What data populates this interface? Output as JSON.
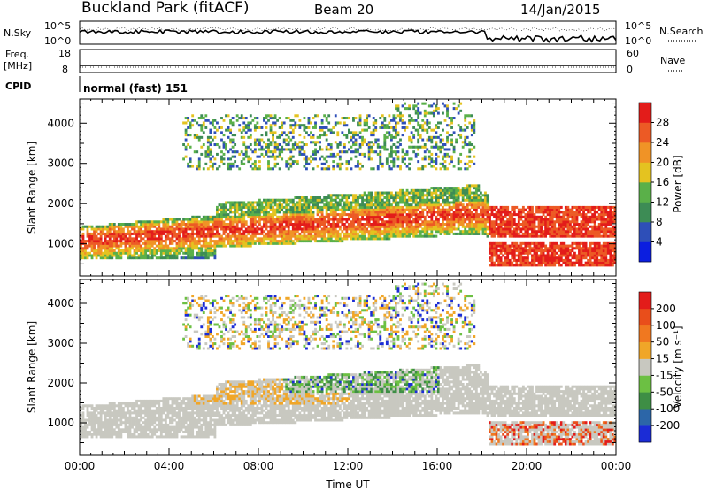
{
  "header": {
    "station": "Buckland Park (fitACF)",
    "beam": "Beam 20",
    "date": "14/Jan/2015"
  },
  "top_panels": {
    "nsky_label": "N.Sky",
    "nsky_ticks": [
      "10^5",
      "10^0"
    ],
    "nsearch_label": "N.Search",
    "nsearch_ticks": [
      "10^5",
      "10^0"
    ],
    "freq_label_1": "Freq.",
    "freq_label_2": "[MHz]",
    "freq_ticks": [
      "18",
      "8"
    ],
    "nave_label": "Nave",
    "nave_ticks": [
      "60",
      "0"
    ],
    "cpid_label": "CPID",
    "cpid_value": "normal (fast) 151"
  },
  "chart_data": [
    {
      "type": "heatmap",
      "title": "",
      "xlabel": "",
      "ylabel": "Slant Range [km]",
      "x_range_hours": [
        0,
        24
      ],
      "ylim": [
        200,
        4600
      ],
      "y_ticks": [
        "1000",
        "2000",
        "3000",
        "4000"
      ],
      "colorbar": {
        "label": "Power [dB]",
        "ticks": [
          "4",
          "8",
          "12",
          "16",
          "20",
          "24",
          "28"
        ],
        "colors": [
          "#0b1ee0",
          "#2e4fb8",
          "#3d8c55",
          "#5ab049",
          "#e4c320",
          "#f09326",
          "#ec5a25",
          "#e31c1a"
        ]
      }
    },
    {
      "type": "heatmap",
      "title": "",
      "xlabel": "Time UT",
      "ylabel": "Slant Range [km]",
      "x_range_hours": [
        0,
        24
      ],
      "x_ticks": [
        "00:00",
        "04:00",
        "08:00",
        "12:00",
        "16:00",
        "20:00",
        "00:00"
      ],
      "ylim": [
        200,
        4600
      ],
      "y_ticks": [
        "1000",
        "2000",
        "3000",
        "4000"
      ],
      "colorbar": {
        "label": "Velocity [m s⁻¹]",
        "ticks": [
          "200",
          "100",
          "50",
          "15",
          "-15",
          "-50",
          "-100",
          "-200"
        ],
        "colors": [
          "#1b2cd6",
          "#2c66a8",
          "#3e8e45",
          "#6cc043",
          "#c8c8c0",
          "#f0a628",
          "#f07820",
          "#e94e1b",
          "#e31c1a"
        ]
      }
    }
  ]
}
